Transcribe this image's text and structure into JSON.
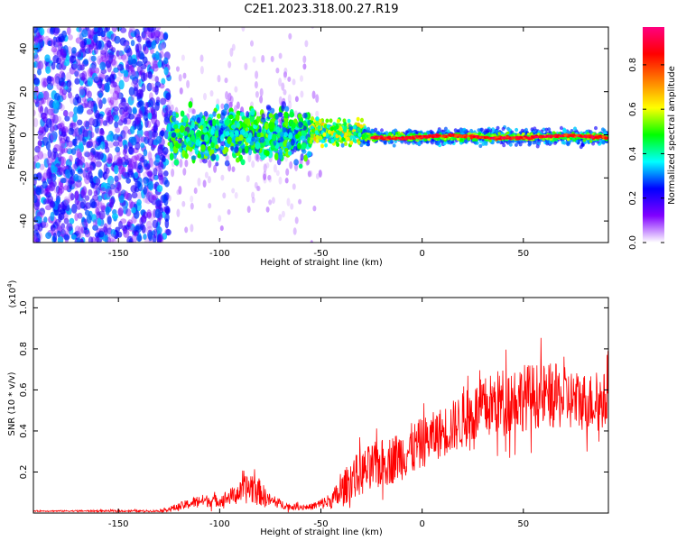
{
  "title": "C2E1.2023.318.00.27.R19",
  "chart_data": [
    {
      "type": "heatmap",
      "xlabel": "Height of straight line (km)",
      "ylabel": "Frequency (Hz)",
      "xlim": [
        -192,
        92
      ],
      "ylim": [
        -50,
        50
      ],
      "xticks": [
        -150,
        -100,
        -50,
        0,
        50
      ],
      "yticks": [
        -40,
        -20,
        0,
        20,
        40
      ],
      "colorbar": {
        "label": "Normalized spectral amplitude",
        "range": [
          0.0,
          0.97
        ],
        "ticks": [
          0.0,
          0.2,
          0.4,
          0.6,
          0.8
        ],
        "stops": [
          "#ffffff",
          "#8000ff",
          "#0000ff",
          "#00ffff",
          "#00ff00",
          "#ffff00",
          "#ff8000",
          "#ff0000",
          "#ff0080"
        ]
      },
      "bands": [
        {
          "x_range": [
            -192,
            -125
          ],
          "freq_spread": 50,
          "amp": 0.25
        },
        {
          "x_range": [
            -125,
            -55
          ],
          "freq_center": 0,
          "freq_halfwidth": 12,
          "amp": 0.45
        },
        {
          "x_range": [
            -55,
            -30
          ],
          "freq_center": 1,
          "freq_halfwidth": 5,
          "amp": 0.6
        },
        {
          "x_range": [
            -30,
            92
          ],
          "freq_center": -1,
          "freq_halfwidth": 3,
          "amp": 0.9
        }
      ]
    },
    {
      "type": "line",
      "xlabel": "Height of straight line (km)",
      "ylabel": "SNR (10 * v/v)",
      "yscale_label": "(x10",
      "yscale_exp": "4",
      "yscale_close": ")",
      "xlim": [
        -192,
        92
      ],
      "ylim": [
        0,
        1.05
      ],
      "xticks": [
        -150,
        -100,
        -50,
        0,
        50
      ],
      "yticks": [
        0.2,
        0.4,
        0.6,
        0.8,
        1.0
      ],
      "series": [
        {
          "color": "#ff0000",
          "envelope_x": [
            -192,
            -130,
            -120,
            -110,
            -100,
            -90,
            -84,
            -75,
            -65,
            -55,
            -45,
            -40,
            -35,
            -25,
            -15,
            -5,
            5,
            15,
            25,
            35,
            45,
            55,
            65,
            75,
            85,
            92
          ],
          "envelope_mean": [
            0.01,
            0.01,
            0.03,
            0.06,
            0.06,
            0.1,
            0.13,
            0.06,
            0.03,
            0.03,
            0.06,
            0.1,
            0.17,
            0.22,
            0.26,
            0.31,
            0.37,
            0.42,
            0.48,
            0.53,
            0.56,
            0.57,
            0.57,
            0.55,
            0.54,
            0.55
          ],
          "envelope_noise": [
            0.003,
            0.005,
            0.02,
            0.03,
            0.03,
            0.05,
            0.09,
            0.03,
            0.015,
            0.015,
            0.04,
            0.08,
            0.1,
            0.12,
            0.12,
            0.13,
            0.12,
            0.13,
            0.15,
            0.16,
            0.17,
            0.16,
            0.16,
            0.15,
            0.14,
            0.14
          ]
        }
      ]
    }
  ]
}
